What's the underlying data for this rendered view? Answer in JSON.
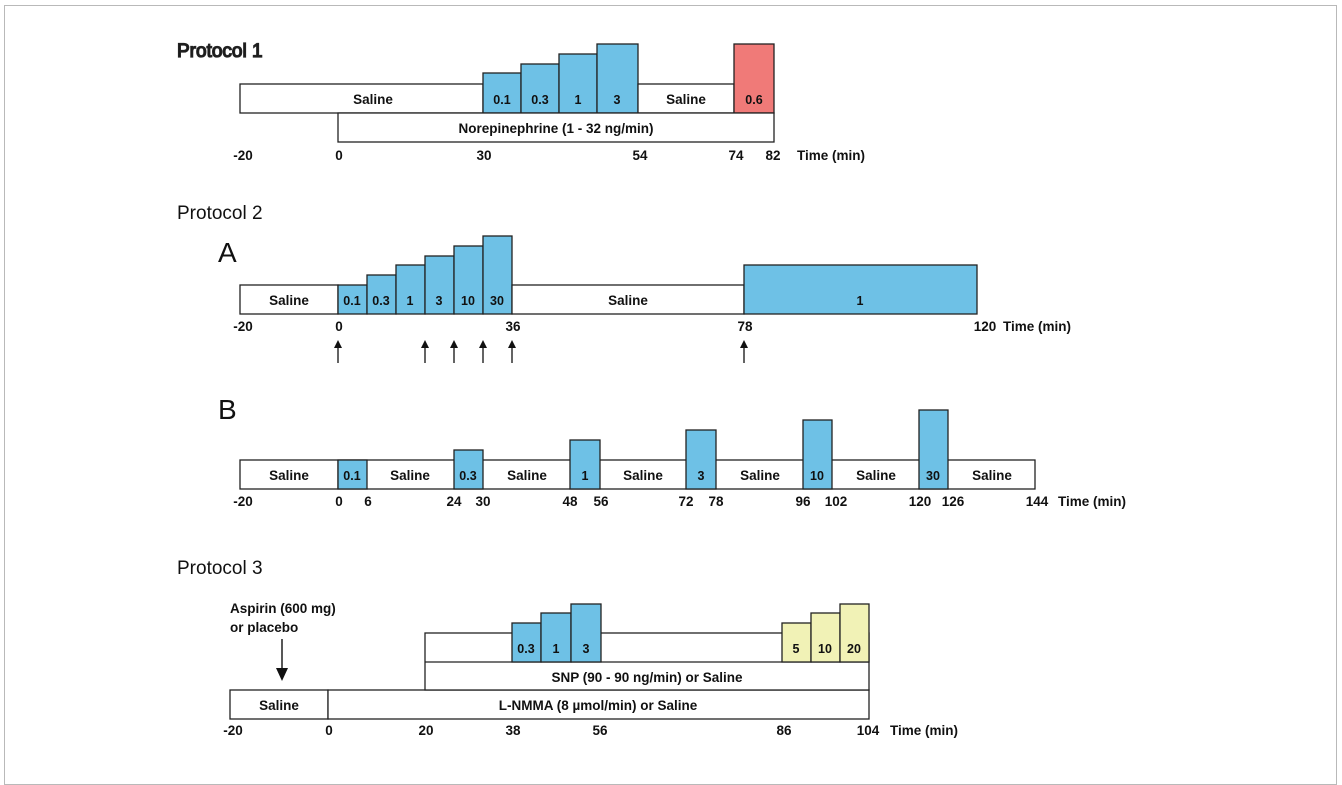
{
  "colors": {
    "blue": "#6ec1e6",
    "red": "#f07a78",
    "yellow": "#f1f2b6",
    "white": "#ffffff",
    "stroke": "#222222"
  },
  "protocol1": {
    "title": "Protocol 1",
    "saline1": "Saline",
    "saline2": "Saline",
    "doses": [
      "0.1",
      "0.3",
      "1",
      "3"
    ],
    "red_dose": "0.6",
    "norepinephrine": "Norepinephrine (1 - 32 ng/min)",
    "ticks": [
      "-20",
      "0",
      "30",
      "54",
      "74",
      "82"
    ],
    "time_label": "Time (min)"
  },
  "protocol2": {
    "title": "Protocol 2",
    "panelA": {
      "label": "A",
      "saline1": "Saline",
      "saline2": "Saline",
      "doses": [
        "0.1",
        "0.3",
        "1",
        "3",
        "10",
        "30"
      ],
      "final_dose": "1",
      "ticks": [
        "-20",
        "0",
        "36",
        "78",
        "120"
      ],
      "time_label": "Time (min)",
      "arrow_count": 6
    },
    "panelB": {
      "label": "B",
      "salines": [
        "Saline",
        "Saline",
        "Saline",
        "Saline",
        "Saline",
        "Saline",
        "Saline"
      ],
      "doses": [
        "0.1",
        "0.3",
        "1",
        "3",
        "10",
        "30"
      ],
      "ticks": [
        "-20",
        "0",
        "6",
        "24",
        "30",
        "48",
        "56",
        "72",
        "78",
        "96",
        "102",
        "120",
        "126",
        "144"
      ],
      "time_label": "Time (min)"
    }
  },
  "protocol3": {
    "title": "Protocol 3",
    "aspirin_line1": "Aspirin (600 mg)",
    "aspirin_line2": "or placebo",
    "saline": "Saline",
    "lnmma": "L-NMMA (8 µmol/min) or Saline",
    "snp": "SNP (90 - 90 ng/min) or Saline",
    "blue_doses": [
      "0.3",
      "1",
      "3"
    ],
    "yellow_doses": [
      "5",
      "10",
      "20"
    ],
    "ticks": [
      "-20",
      "0",
      "20",
      "38",
      "56",
      "86",
      "104"
    ],
    "time_label": "Time (min)"
  }
}
